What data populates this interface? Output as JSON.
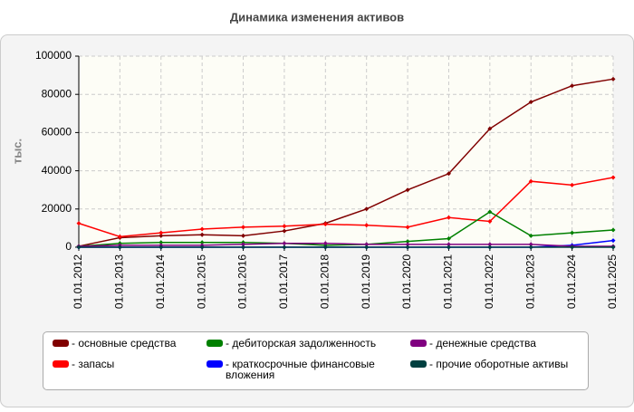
{
  "chart_data": {
    "type": "line",
    "title": "Динамика изменения активов",
    "y_label": "тыс.",
    "categories": [
      "01.01.2012",
      "01.01.2013",
      "01.01.2014",
      "01.01.2015",
      "01.01.2016",
      "01.01.2017",
      "01.01.2018",
      "01.01.2019",
      "01.01.2020",
      "01.01.2021",
      "01.01.2022",
      "01.01.2023",
      "01.01.2024",
      "01.01.2025"
    ],
    "series": [
      {
        "name": "- основные средства",
        "color": "#800000",
        "values": [
          500,
          5000,
          6000,
          6500,
          6000,
          8500,
          12500,
          20000,
          30000,
          38500,
          62000,
          76000,
          84500,
          88000
        ]
      },
      {
        "name": "- запасы",
        "color": "#ff0000",
        "values": [
          12500,
          5500,
          7500,
          9500,
          10500,
          11000,
          12000,
          11500,
          10500,
          15500,
          13500,
          34500,
          32500,
          36500
        ]
      },
      {
        "name": "- дебиторская задолженность",
        "color": "#008000",
        "values": [
          500,
          2000,
          2500,
          2500,
          2500,
          2000,
          1000,
          1500,
          3000,
          4500,
          18500,
          6000,
          7500,
          9000
        ]
      },
      {
        "name": "- краткосрочные финансовые вложения",
        "color": "#0000ff",
        "values": [
          0,
          0,
          0,
          0,
          0,
          0,
          0,
          0,
          0,
          0,
          0,
          0,
          1000,
          3500
        ]
      },
      {
        "name": "- денежные средства",
        "color": "#800080",
        "values": [
          500,
          1000,
          1000,
          1000,
          1500,
          2000,
          2000,
          1500,
          1500,
          1500,
          1500,
          1500,
          500,
          500
        ]
      },
      {
        "name": "- прочие оборотные активы",
        "color": "#004040",
        "values": [
          0,
          0,
          0,
          0,
          0,
          0,
          0,
          0,
          0,
          0,
          0,
          0,
          0,
          0
        ]
      }
    ],
    "ylim": [
      0,
      100000
    ],
    "yticks": [
      0,
      20000,
      40000,
      60000,
      80000,
      100000
    ],
    "grid": true
  }
}
